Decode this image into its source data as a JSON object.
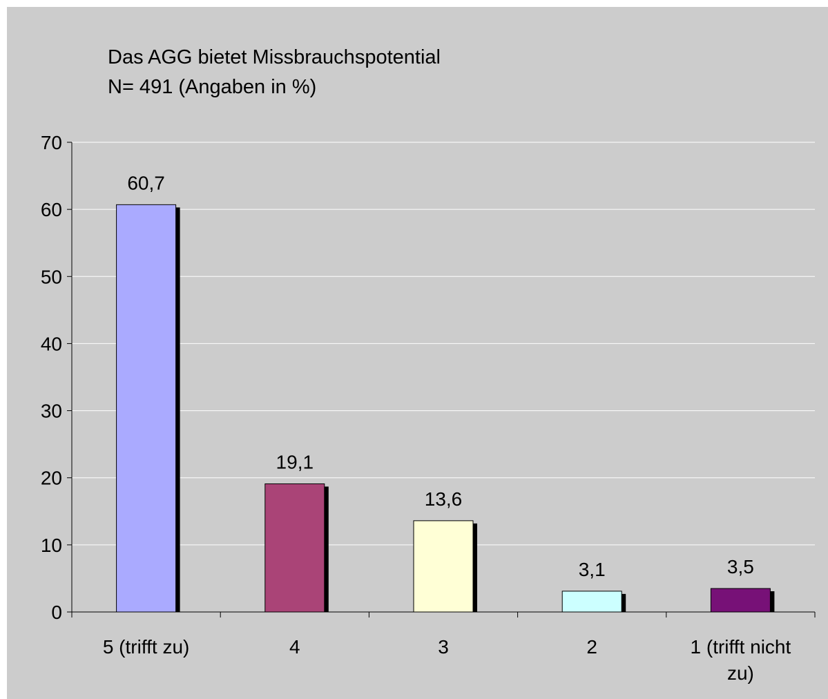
{
  "chart_data": {
    "type": "bar",
    "title": "Das AGG bietet Missbrauchspotential",
    "subtitle": "N= 491 (Angaben in %)",
    "categories": [
      {
        "label": "5 (trifft zu)",
        "lines": [
          "5 (trifft zu)"
        ]
      },
      {
        "label": "4",
        "lines": [
          "4"
        ]
      },
      {
        "label": "3",
        "lines": [
          "3"
        ]
      },
      {
        "label": "2",
        "lines": [
          "2"
        ]
      },
      {
        "label": "1 (trifft nicht zu)",
        "lines": [
          "1 (trifft nicht",
          "zu)"
        ]
      }
    ],
    "values": [
      60.7,
      19.1,
      13.6,
      3.1,
      3.5
    ],
    "value_labels": [
      "60,7",
      "19,1",
      "13,6",
      "3,1",
      "3,5"
    ],
    "colors": [
      "#aaaaff",
      "#aa4477",
      "#ffffd6",
      "#ccffff",
      "#771177"
    ],
    "ylim": [
      0,
      70
    ],
    "yticks": [
      0,
      10,
      20,
      30,
      40,
      50,
      60,
      70
    ],
    "xlabel": "",
    "ylabel": "",
    "grid": true,
    "legend": false
  }
}
